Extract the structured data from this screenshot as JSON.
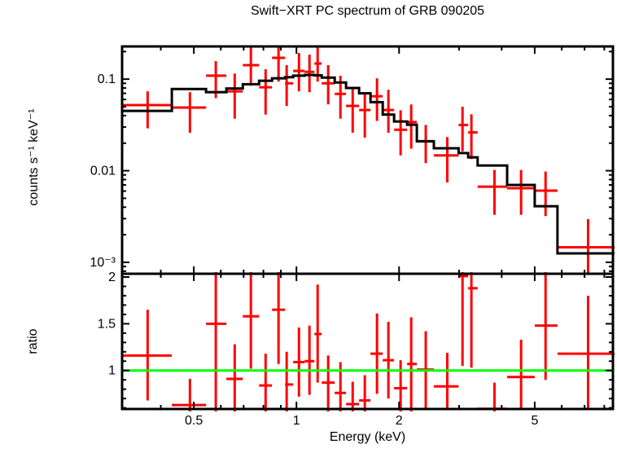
{
  "title": "Swift−XRT PC spectrum of GRB 090205",
  "colors": {
    "data": "#ff0000",
    "model": "#000000",
    "reference_line": "#00ff00",
    "frame": "#000000",
    "background": "#ffffff"
  },
  "chart_data": [
    {
      "type": "scatter",
      "panel": "spectrum",
      "title": "Swift−XRT PC spectrum of GRB 090205",
      "xlabel": "Energy (keV)",
      "ylabel": "counts s⁻¹ keV⁻¹",
      "xscale": "log",
      "yscale": "log",
      "xlim": [
        0.308,
        8.48
      ],
      "ylim": [
        0.00075,
        0.2275
      ],
      "grid": false,
      "legend": "none",
      "x_ticks": {
        "major": [
          {
            "value": 0.5,
            "label": "0.5"
          },
          {
            "value": 1,
            "label": "1"
          },
          {
            "value": 2,
            "label": "2"
          },
          {
            "value": 5,
            "label": "5"
          }
        ],
        "minor": [
          0.4,
          0.6,
          0.7,
          0.8,
          0.9,
          3,
          4,
          6,
          7,
          8
        ]
      },
      "y_ticks": {
        "major": [
          {
            "value": 0.1,
            "label": "0.1"
          },
          {
            "value": 0.01,
            "label": "0.01"
          },
          {
            "value": 0.001,
            "label": "10⁻³"
          }
        ]
      },
      "points": [
        {
          "e": 0.366,
          "elo": 0.308,
          "ehi": 0.431,
          "v": 0.052,
          "vlo": 0.029,
          "vhi": 0.0735
        },
        {
          "e": 0.487,
          "elo": 0.431,
          "ehi": 0.543,
          "v": 0.049,
          "vlo": 0.026,
          "vhi": 0.072
        },
        {
          "e": 0.58,
          "elo": 0.543,
          "ehi": 0.623,
          "v": 0.109,
          "vlo": 0.062,
          "vhi": 0.157
        },
        {
          "e": 0.659,
          "elo": 0.623,
          "ehi": 0.696,
          "v": 0.0735,
          "vlo": 0.037,
          "vhi": 0.115
        },
        {
          "e": 0.735,
          "elo": 0.696,
          "ehi": 0.777,
          "v": 0.142,
          "vlo": 0.085,
          "vhi": 0.223
        },
        {
          "e": 0.812,
          "elo": 0.777,
          "ehi": 0.848,
          "v": 0.0815,
          "vlo": 0.041,
          "vhi": 0.128
        },
        {
          "e": 0.886,
          "elo": 0.848,
          "ehi": 0.926,
          "v": 0.171,
          "vlo": 0.094,
          "vhi": 0.232
        },
        {
          "e": 0.936,
          "elo": 0.926,
          "ehi": 0.978,
          "v": 0.09,
          "vlo": 0.051,
          "vhi": 0.142
        },
        {
          "e": 1.017,
          "elo": 0.978,
          "ehi": 1.057,
          "v": 0.123,
          "vlo": 0.0735,
          "vhi": 0.193
        },
        {
          "e": 1.092,
          "elo": 1.057,
          "ehi": 1.129,
          "v": 0.12,
          "vlo": 0.072,
          "vhi": 0.185
        },
        {
          "e": 1.154,
          "elo": 1.129,
          "ehi": 1.186,
          "v": 0.148,
          "vlo": 0.094,
          "vhi": 0.227
        },
        {
          "e": 1.239,
          "elo": 1.186,
          "ehi": 1.295,
          "v": 0.09,
          "vlo": 0.053,
          "vhi": 0.142
        },
        {
          "e": 1.346,
          "elo": 1.295,
          "ehi": 1.398,
          "v": 0.069,
          "vlo": 0.037,
          "vhi": 0.109
        },
        {
          "e": 1.462,
          "elo": 1.398,
          "ehi": 1.527,
          "v": 0.051,
          "vlo": 0.026,
          "vhi": 0.08
        },
        {
          "e": 1.587,
          "elo": 1.527,
          "ehi": 1.649,
          "v": 0.046,
          "vlo": 0.023,
          "vhi": 0.072
        },
        {
          "e": 1.723,
          "elo": 1.649,
          "ehi": 1.791,
          "v": 0.065,
          "vlo": 0.035,
          "vhi": 0.102
        },
        {
          "e": 1.861,
          "elo": 1.791,
          "ehi": 1.934,
          "v": 0.046,
          "vlo": 0.026,
          "vhi": 0.0765
        },
        {
          "e": 2.021,
          "elo": 1.934,
          "ehi": 2.112,
          "v": 0.028,
          "vlo": 0.0147,
          "vhi": 0.0457
        },
        {
          "e": 2.171,
          "elo": 2.112,
          "ehi": 2.255,
          "v": 0.034,
          "vlo": 0.0174,
          "vhi": 0.0529
        },
        {
          "e": 2.395,
          "elo": 2.255,
          "ehi": 2.53,
          "v": 0.021,
          "vlo": 0.0121,
          "vhi": 0.0316
        },
        {
          "e": 2.77,
          "elo": 2.53,
          "ehi": 2.99,
          "v": 0.0147,
          "vlo": 0.00745,
          "vhi": 0.0233
        },
        {
          "e": 3.07,
          "elo": 2.99,
          "ehi": 3.19,
          "v": 0.0316,
          "vlo": 0.0163,
          "vhi": 0.05
        },
        {
          "e": 3.26,
          "elo": 3.19,
          "ehi": 3.4,
          "v": 0.0262,
          "vlo": 0.0134,
          "vhi": 0.0413
        },
        {
          "e": 3.81,
          "elo": 3.4,
          "ehi": 4.15,
          "v": 0.0067,
          "vlo": 0.0033,
          "vhi": 0.0102
        },
        {
          "e": 4.56,
          "elo": 4.15,
          "ehi": 5.0,
          "v": 0.00645,
          "vlo": 0.0033,
          "vhi": 0.0102
        },
        {
          "e": 5.38,
          "elo": 5.0,
          "ehi": 5.83,
          "v": 0.00606,
          "vlo": 0.0032,
          "vhi": 0.0098
        },
        {
          "e": 7.17,
          "elo": 5.83,
          "ehi": 8.67,
          "v": 0.00146,
          "vlo": 0.00077,
          "vhi": 0.00296
        }
      ],
      "model_steps": [
        {
          "elo": 0.308,
          "ehi": 0.431,
          "v": 0.045
        },
        {
          "elo": 0.431,
          "ehi": 0.543,
          "v": 0.078
        },
        {
          "elo": 0.543,
          "ehi": 0.623,
          "v": 0.072
        },
        {
          "elo": 0.623,
          "ehi": 0.696,
          "v": 0.079
        },
        {
          "elo": 0.696,
          "ehi": 0.777,
          "v": 0.088
        },
        {
          "elo": 0.777,
          "ehi": 0.848,
          "v": 0.096
        },
        {
          "elo": 0.848,
          "ehi": 0.926,
          "v": 0.102
        },
        {
          "elo": 0.926,
          "ehi": 0.978,
          "v": 0.105
        },
        {
          "elo": 0.978,
          "ehi": 1.057,
          "v": 0.109
        },
        {
          "elo": 1.057,
          "ehi": 1.129,
          "v": 0.111
        },
        {
          "elo": 1.129,
          "ehi": 1.186,
          "v": 0.11
        },
        {
          "elo": 1.186,
          "ehi": 1.295,
          "v": 0.104
        },
        {
          "elo": 1.295,
          "ehi": 1.398,
          "v": 0.092
        },
        {
          "elo": 1.398,
          "ehi": 1.527,
          "v": 0.08
        },
        {
          "elo": 1.527,
          "ehi": 1.649,
          "v": 0.07
        },
        {
          "elo": 1.649,
          "ehi": 1.791,
          "v": 0.056
        },
        {
          "elo": 1.791,
          "ehi": 1.934,
          "v": 0.041
        },
        {
          "elo": 1.934,
          "ehi": 2.112,
          "v": 0.0345
        },
        {
          "elo": 2.112,
          "ehi": 2.255,
          "v": 0.0318
        },
        {
          "elo": 2.255,
          "ehi": 2.53,
          "v": 0.021
        },
        {
          "elo": 2.53,
          "ehi": 2.99,
          "v": 0.0176
        },
        {
          "elo": 2.99,
          "ehi": 3.19,
          "v": 0.0156
        },
        {
          "elo": 3.19,
          "ehi": 3.4,
          "v": 0.014
        },
        {
          "elo": 3.4,
          "ehi": 4.15,
          "v": 0.0114
        },
        {
          "elo": 4.15,
          "ehi": 5.0,
          "v": 0.007
        },
        {
          "elo": 5.0,
          "ehi": 5.83,
          "v": 0.0041
        },
        {
          "elo": 5.83,
          "ehi": 8.67,
          "v": 0.00125
        }
      ]
    },
    {
      "type": "scatter",
      "panel": "ratio",
      "xlabel": "Energy (keV)",
      "ylabel": "ratio",
      "xscale": "log",
      "yscale": "linear",
      "xlim": [
        0.308,
        8.48
      ],
      "ylim": [
        0.588,
        2.035
      ],
      "grid": false,
      "reference_line_y": 1,
      "y_ticks": {
        "major": [
          {
            "value": 1,
            "label": "1"
          },
          {
            "value": 1.5,
            "label": "1.5"
          },
          {
            "value": 2,
            "label": "2"
          }
        ],
        "minor": [
          0.6,
          0.7,
          0.8,
          0.9,
          1.1,
          1.2,
          1.3,
          1.4,
          1.6,
          1.7,
          1.8,
          1.9
        ]
      },
      "points": [
        {
          "e": 0.366,
          "elo": 0.308,
          "ehi": 0.431,
          "r": 1.16,
          "rlo": 0.68,
          "rhi": 1.65
        },
        {
          "e": 0.487,
          "elo": 0.431,
          "ehi": 0.543,
          "r": 0.63,
          "rlo": 0.3,
          "rhi": 0.91
        },
        {
          "e": 0.58,
          "elo": 0.543,
          "ehi": 0.623,
          "r": 1.5,
          "rlo": 0.45,
          "rhi": 2.55
        },
        {
          "e": 0.659,
          "elo": 0.623,
          "ehi": 0.696,
          "r": 0.91,
          "rlo": 0.4,
          "rhi": 1.28
        },
        {
          "e": 0.735,
          "elo": 0.696,
          "ehi": 0.777,
          "r": 1.58,
          "rlo": 1.02,
          "rhi": 2.3
        },
        {
          "e": 0.812,
          "elo": 0.777,
          "ehi": 0.848,
          "r": 0.84,
          "rlo": 0.4,
          "rhi": 1.18
        },
        {
          "e": 0.886,
          "elo": 0.848,
          "ehi": 0.926,
          "r": 1.65,
          "rlo": 1.07,
          "rhi": 2.4
        },
        {
          "e": 0.936,
          "elo": 0.926,
          "ehi": 0.978,
          "r": 0.85,
          "rlo": 0.35,
          "rhi": 1.2
        },
        {
          "e": 1.017,
          "elo": 0.978,
          "ehi": 1.057,
          "r": 1.09,
          "rlo": 0.72,
          "rhi": 1.46
        },
        {
          "e": 1.092,
          "elo": 1.057,
          "ehi": 1.129,
          "r": 1.1,
          "rlo": 0.74,
          "rhi": 1.48
        },
        {
          "e": 1.154,
          "elo": 1.129,
          "ehi": 1.186,
          "r": 1.39,
          "rlo": 0.87,
          "rhi": 1.92
        },
        {
          "e": 1.239,
          "elo": 1.186,
          "ehi": 1.295,
          "r": 0.87,
          "rlo": 0.4,
          "rhi": 1.16
        },
        {
          "e": 1.346,
          "elo": 1.295,
          "ehi": 1.398,
          "r": 0.76,
          "rlo": 0.35,
          "rhi": 1.09
        },
        {
          "e": 1.462,
          "elo": 1.398,
          "ehi": 1.527,
          "r": 0.64,
          "rlo": 0.3,
          "rhi": 0.88
        },
        {
          "e": 1.587,
          "elo": 1.527,
          "ehi": 1.649,
          "r": 0.68,
          "rlo": 0.32,
          "rhi": 0.95
        },
        {
          "e": 1.723,
          "elo": 1.649,
          "ehi": 1.791,
          "r": 1.18,
          "rlo": 0.75,
          "rhi": 1.61
        },
        {
          "e": 1.861,
          "elo": 1.791,
          "ehi": 1.934,
          "r": 1.11,
          "rlo": 0.7,
          "rhi": 1.52
        },
        {
          "e": 2.021,
          "elo": 1.934,
          "ehi": 2.112,
          "r": 0.81,
          "rlo": 0.45,
          "rhi": 1.11
        },
        {
          "e": 2.171,
          "elo": 2.112,
          "ehi": 2.255,
          "r": 1.07,
          "rlo": 0.55,
          "rhi": 1.57
        },
        {
          "e": 2.395,
          "elo": 2.255,
          "ehi": 2.53,
          "r": 1.01,
          "rlo": 0.6,
          "rhi": 1.42
        },
        {
          "e": 2.77,
          "elo": 2.53,
          "ehi": 2.99,
          "r": 0.83,
          "rlo": 0.58,
          "rhi": 1.19
        },
        {
          "e": 3.07,
          "elo": 2.99,
          "ehi": 3.19,
          "r": 2.01,
          "rlo": 1.05,
          "rhi": 2.6
        },
        {
          "e": 3.26,
          "elo": 3.19,
          "ehi": 3.4,
          "r": 1.88,
          "rlo": 1.03,
          "rhi": 2.55
        },
        {
          "e": 3.81,
          "elo": 3.4,
          "ehi": 4.15,
          "r": 0.59,
          "rlo": 0.3,
          "rhi": 0.87
        },
        {
          "e": 4.56,
          "elo": 4.15,
          "ehi": 5.0,
          "r": 0.93,
          "rlo": 0.6,
          "rhi": 1.33
        },
        {
          "e": 5.38,
          "elo": 5.0,
          "ehi": 5.83,
          "r": 1.48,
          "rlo": 0.9,
          "rhi": 2.1
        },
        {
          "e": 7.17,
          "elo": 5.83,
          "ehi": 8.67,
          "r": 1.18,
          "rlo": 0.6,
          "rhi": 1.8
        }
      ]
    }
  ]
}
